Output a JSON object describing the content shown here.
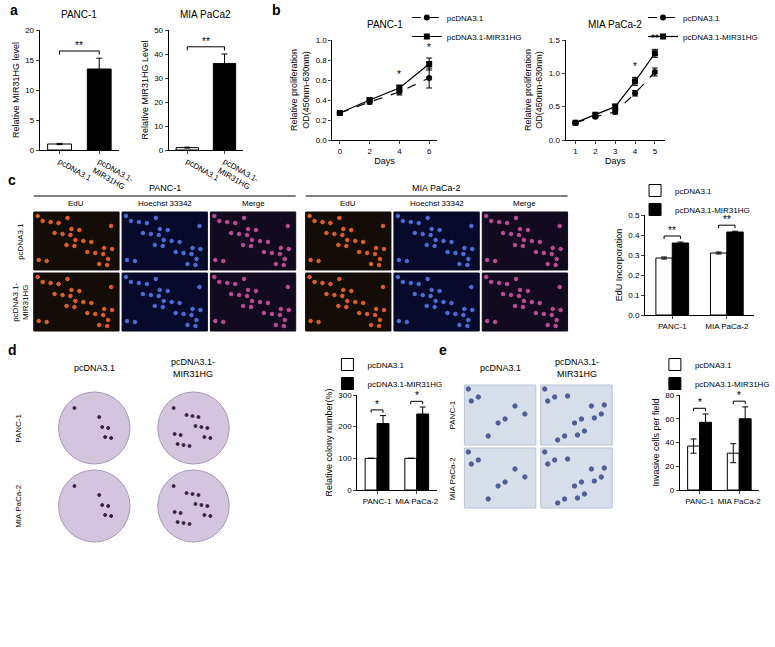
{
  "chart_data": [
    {
      "panel": "a",
      "type": "bar",
      "title": "PANC-1",
      "categories": [
        "pcDNA3.1",
        "pcDNA3.1-MIR31HG"
      ],
      "values": [
        1,
        13.5
      ],
      "errors": [
        0.1,
        1.8
      ],
      "colors": [
        "#ffffff",
        "#000000"
      ],
      "ylabel": "Relative MIR31HG level",
      "ylim": [
        0,
        20
      ],
      "yticks": [
        0,
        5,
        10,
        15,
        20
      ],
      "significance": [
        {
          "text": "**"
        }
      ],
      "grid": false
    },
    {
      "panel": "a",
      "type": "bar",
      "title": "MIA PaCa2",
      "categories": [
        "pcDNA3.1",
        "pcDNA3.1-MIR31HG"
      ],
      "values": [
        1,
        36
      ],
      "errors": [
        0.2,
        4
      ],
      "colors": [
        "#ffffff",
        "#000000"
      ],
      "ylabel": "Relative MIR31HG Level",
      "ylim": [
        0,
        50
      ],
      "yticks": [
        0,
        10,
        20,
        30,
        40,
        50
      ],
      "significance": [
        {
          "text": "**"
        }
      ],
      "grid": false
    },
    {
      "panel": "b",
      "type": "line",
      "title": "PANC-1",
      "x": [
        0,
        2,
        4,
        6
      ],
      "xlabel": "Days",
      "ylabel": "Relative proliferation\nOD(450nm-630nm)",
      "xlim": [
        -0.5,
        6.5
      ],
      "xticks": [
        0,
        2,
        4,
        6
      ],
      "ylim": [
        0,
        1.0
      ],
      "yticks": [
        {
          "value": 0,
          "label": "0.0"
        },
        0.2,
        0.4,
        0.6,
        0.8,
        {
          "value": 1,
          "label": "1.0"
        }
      ],
      "series": [
        {
          "name": "pcDNA3.1",
          "color": "#000000",
          "marker": "circle",
          "line_style": "dash",
          "values": [
            0.27,
            0.38,
            0.48,
            0.62
          ],
          "errors": [
            0.01,
            0.02,
            0.03,
            0.1
          ]
        },
        {
          "name": "pcDNA3.1-MIR31HG",
          "color": "#000000",
          "marker": "square",
          "line_style": "solid",
          "values": [
            0.27,
            0.4,
            0.52,
            0.76
          ],
          "errors": [
            0.01,
            0.02,
            0.03,
            0.06
          ]
        }
      ],
      "significance": [
        {
          "x": 4,
          "text": "*"
        },
        {
          "x": 6,
          "text": "*"
        }
      ],
      "legend": "top right",
      "grid": false
    },
    {
      "panel": "b",
      "type": "line",
      "title": "MIA PaCa-2",
      "x": [
        1,
        2,
        3,
        4,
        5
      ],
      "xlabel": "Days",
      "ylabel": "Relative proliferation\nOD(450nm-630nm)",
      "xlim": [
        0.5,
        5.5
      ],
      "xticks": [
        1,
        2,
        3,
        4,
        5
      ],
      "ylim": [
        0,
        1.5
      ],
      "yticks": [
        {
          "value": 0,
          "label": "0.0"
        },
        0.5,
        {
          "value": 1,
          "label": "1.0"
        },
        1.5
      ],
      "series": [
        {
          "name": "pcDNA3.1",
          "color": "#000000",
          "marker": "circle",
          "line_style": "dash",
          "values": [
            0.26,
            0.35,
            0.42,
            0.7,
            1.02
          ],
          "errors": [
            0.01,
            0.02,
            0.03,
            0.04,
            0.06
          ]
        },
        {
          "name": "pcDNA3.1-MIR31HG",
          "color": "#000000",
          "marker": "square",
          "line_style": "solid",
          "values": [
            0.26,
            0.38,
            0.5,
            0.88,
            1.3
          ],
          "errors": [
            0.01,
            0.02,
            0.04,
            0.06,
            0.06
          ]
        }
      ],
      "significance": [
        {
          "x": 4,
          "text": "*"
        },
        {
          "x": 5,
          "text": "**"
        }
      ],
      "legend": "top right",
      "grid": false
    },
    {
      "panel": "c",
      "type": "bar",
      "categories": [
        "PANC-1",
        "MIA PaCa-2"
      ],
      "ylabel": "EdU Incorporation",
      "ylim": [
        0,
        0.5
      ],
      "yticks": [
        {
          "value": 0,
          "label": "0.0"
        },
        0.1,
        0.2,
        0.3,
        0.4,
        0.5
      ],
      "series": [
        {
          "name": "pcDNA3.1",
          "color": "#ffffff",
          "values": [
            0.285,
            0.31
          ],
          "errors": [
            0.005,
            0.005
          ]
        },
        {
          "name": "pcDNA3.1-MIR31HG",
          "color": "#000000",
          "values": [
            0.36,
            0.415
          ],
          "errors": [
            0.005,
            0.004
          ]
        }
      ],
      "significance": [
        {
          "category": "PANC-1",
          "text": "**"
        },
        {
          "category": "MIA PaCa-2",
          "text": "**"
        }
      ],
      "legend": "top right",
      "grid": false
    },
    {
      "panel": "d",
      "type": "bar",
      "categories": [
        "PANC-1",
        "MIA PaCa-2"
      ],
      "ylabel": "Relative colony number(%)",
      "ylim": [
        0,
        300
      ],
      "yticks": [
        0,
        100,
        200,
        300
      ],
      "series": [
        {
          "name": "pcDNA3.1",
          "color": "#ffffff",
          "values": [
            100,
            100
          ],
          "errors": [
            0,
            0
          ]
        },
        {
          "name": "pcDNA3.1-MIR31HG",
          "color": "#000000",
          "values": [
            210,
            240
          ],
          "errors": [
            25,
            22
          ]
        }
      ],
      "significance": [
        {
          "category": "PANC-1",
          "text": "*"
        },
        {
          "category": "MIA PaCa-2",
          "text": "*"
        }
      ],
      "legend": "top right",
      "grid": false
    },
    {
      "panel": "e",
      "type": "bar",
      "categories": [
        "PANC-1",
        "MIA PaCa-2"
      ],
      "ylabel": "Invasive cells per field",
      "ylim": [
        0,
        80
      ],
      "yticks": [
        0,
        20,
        40,
        60,
        80
      ],
      "series": [
        {
          "name": "pcDNA3.1",
          "color": "#ffffff",
          "values": [
            37,
            31
          ],
          "errors": [
            6,
            8
          ]
        },
        {
          "name": "pcDNA3.1-MIR31HG",
          "color": "#000000",
          "values": [
            57,
            60
          ],
          "errors": [
            7,
            10
          ]
        }
      ],
      "significance": [
        {
          "category": "PANC-1",
          "text": "*"
        },
        {
          "category": "MIA PaCa-2",
          "text": "*"
        }
      ],
      "legend": "top right",
      "grid": false
    }
  ],
  "image_panels": [
    {
      "panel": "c",
      "groups": [
        {
          "title": "PANC-1",
          "columns": [
            "EdU",
            "Hoechst 33342",
            "Merge"
          ]
        },
        {
          "title": "MIA PaCa-2",
          "columns": [
            "EdU",
            "Hoechst 33342",
            "Merge"
          ]
        }
      ],
      "rows": [
        "pcDNA3.1",
        "pcDNA3.1-MIR31HG"
      ]
    },
    {
      "panel": "d",
      "columns": [
        "pcDNA3.1",
        "pcDNA3.1-MIR31HG"
      ],
      "rows": [
        "PANC-1",
        "MIA PaCa-2"
      ]
    },
    {
      "panel": "e",
      "columns": [
        "pcDNA3.1",
        "pcDNA3.1-MIR31HG"
      ],
      "rows": [
        "PANC-1",
        "MIA PaCa-2"
      ]
    }
  ]
}
